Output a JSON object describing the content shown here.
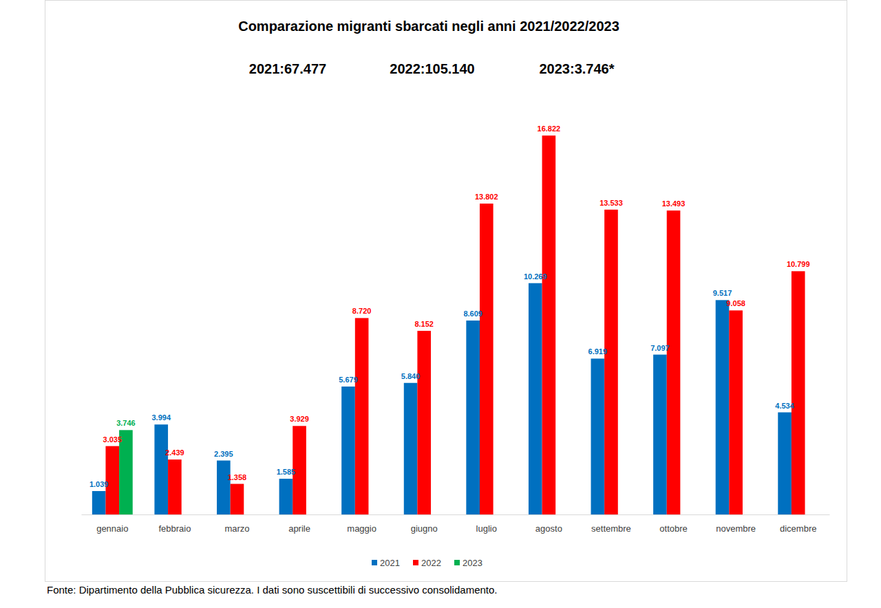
{
  "chart_data": {
    "type": "bar",
    "title": "Comparazione migranti sbarcati negli anni 2021/2022/2023",
    "annotations": [
      "2021:67.477",
      "2022:105.140",
      "2023:3.746*"
    ],
    "source": "Fonte: Dipartimento della Pubblica sicurezza. I dati sono suscettibili di successivo consolidamento.",
    "categories": [
      "gennaio",
      "febbraio",
      "marzo",
      "aprile",
      "maggio",
      "giugno",
      "luglio",
      "agosto",
      "settembre",
      "ottobre",
      "novembre",
      "dicembre"
    ],
    "series": [
      {
        "name": "2021",
        "color": "#0070c0",
        "values": [
          1039,
          3994,
          2395,
          1585,
          5679,
          5840,
          8609,
          10269,
          6919,
          7097,
          9517,
          4534
        ],
        "value_labels": [
          "1.039",
          "3.994",
          "2.395",
          "1.585",
          "5.679",
          "5.840",
          "8.609",
          "10.269",
          "6.919",
          "7.097",
          "9.517",
          "4.534"
        ]
      },
      {
        "name": "2022",
        "color": "#ff0000",
        "values": [
          3035,
          2439,
          1358,
          3929,
          8720,
          8152,
          13802,
          16822,
          13533,
          13493,
          9058,
          10799
        ],
        "value_labels": [
          "3.035",
          "2.439",
          "1.358",
          "3.929",
          "8.720",
          "8.152",
          "13.802",
          "16.822",
          "13.533",
          "13.493",
          "9.058",
          "10.799"
        ]
      },
      {
        "name": "2023",
        "color": "#00b050",
        "values": [
          3746,
          null,
          null,
          null,
          null,
          null,
          null,
          null,
          null,
          null,
          null,
          null
        ],
        "value_labels": [
          "3.746",
          null,
          null,
          null,
          null,
          null,
          null,
          null,
          null,
          null,
          null,
          null
        ]
      }
    ],
    "ylim": [
      0,
      18000
    ],
    "tick_labels": "x",
    "grid": false,
    "data_labels": true,
    "legend": "bottom"
  }
}
